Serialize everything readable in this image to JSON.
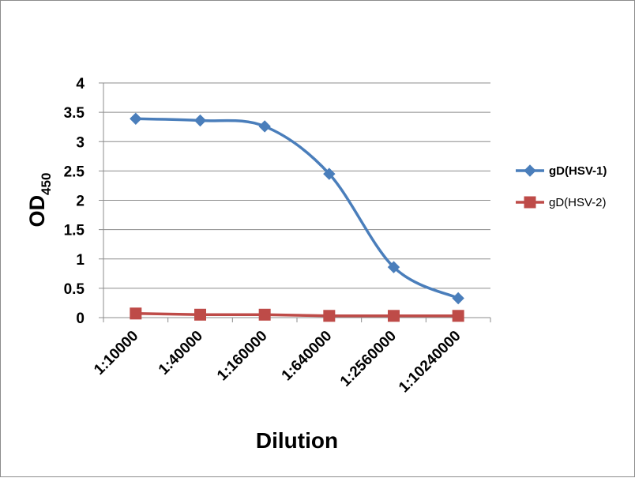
{
  "chart_data": {
    "type": "line",
    "xlabel": "Dilution",
    "ylabel": {
      "main": "OD",
      "subscript": "450"
    },
    "ylim": [
      0,
      4
    ],
    "yticks": [
      0,
      0.5,
      1,
      1.5,
      2,
      2.5,
      3,
      3.5,
      4
    ],
    "categories": [
      "1:10000",
      "1:40000",
      "1:160000",
      "1:640000",
      "1:2560000",
      "1:10240000"
    ],
    "grid": "horizontal",
    "legend_position": "right",
    "series": [
      {
        "name": "gD(HSV-1)",
        "color": "#4a7ebb",
        "marker": "diamond",
        "smooth": true,
        "values": [
          3.39,
          3.36,
          3.26,
          2.45,
          0.86,
          0.33
        ]
      },
      {
        "name": "gD(HSV-2)",
        "color": "#be4b48",
        "marker": "square",
        "smooth": false,
        "values": [
          0.07,
          0.05,
          0.05,
          0.03,
          0.03,
          0.03
        ]
      }
    ]
  }
}
